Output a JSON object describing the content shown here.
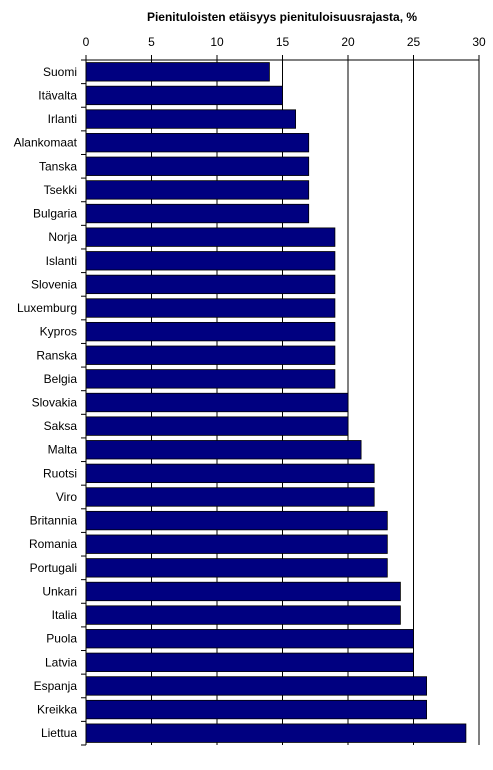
{
  "chart_data": {
    "type": "bar",
    "orientation": "horizontal",
    "title": "Pienituloisten etäisyys pienituloisuusrajasta, %",
    "xlabel": "",
    "ylabel": "",
    "xlim": [
      0,
      30
    ],
    "xticks": [
      0,
      5,
      10,
      15,
      20,
      25,
      30
    ],
    "axis_position": "top",
    "grid": true,
    "bar_color": "#000080",
    "categories": [
      "Suomi",
      "Itävalta",
      "Irlanti",
      "Alankomaat",
      "Tanska",
      "Tsekki",
      "Bulgaria",
      "Norja",
      "Islanti",
      "Slovenia",
      "Luxemburg",
      "Kypros",
      "Ranska",
      "Belgia",
      "Slovakia",
      "Saksa",
      "Malta",
      "Ruotsi",
      "Viro",
      "Britannia",
      "Romania",
      "Portugali",
      "Unkari",
      "Italia",
      "Puola",
      "Latvia",
      "Espanja",
      "Kreikka",
      "Liettua"
    ],
    "values": [
      14,
      15,
      16,
      17,
      17,
      17,
      17,
      19,
      19,
      19,
      19,
      19,
      19,
      19,
      20,
      20,
      21,
      22,
      22,
      23,
      23,
      23,
      24,
      24,
      25,
      25,
      26,
      26,
      29
    ]
  }
}
